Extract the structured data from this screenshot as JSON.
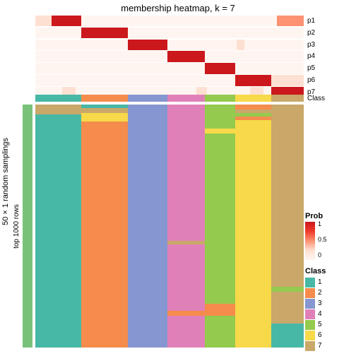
{
  "title": "membership heatmap, k = 7",
  "left_outer_label": "50 × 1 random samplings",
  "left_inner_label": "top 1000 rows",
  "left_block1_color": "#ffffff",
  "left_block2_color": "#79c27b",
  "p_row_labels": [
    "p1",
    "p2",
    "p3",
    "p4",
    "p5",
    "p6",
    "p7"
  ],
  "class_label": "Class",
  "prob_colors": {
    "c0": "#fff5f0",
    "c02": "#fee0d2",
    "c05": "#fc9272",
    "c08": "#ef3b2c",
    "c1": "#cb181d"
  },
  "class_colors": [
    "#47b8a5",
    "#f58c4c",
    "#8696d0",
    "#e080b8",
    "#94ca4e",
    "#f7d949",
    "#c9a86a"
  ],
  "class_labels": [
    "1",
    "2",
    "3",
    "4",
    "5",
    "6",
    "7"
  ],
  "legend_prob_title": "Prob",
  "legend_class_title": "Class",
  "prob_ticks": [
    "1",
    "0.5",
    "0"
  ],
  "col_widths": [
    0.172,
    0.172,
    0.147,
    0.14,
    0.114,
    0.135,
    0.12
  ],
  "p_rows": [
    {
      "blocks": [
        [
          0.0,
          0.06,
          "c02"
        ],
        [
          0.06,
          0.172,
          "c1"
        ],
        [
          0.172,
          0.9,
          "c0"
        ],
        [
          0.9,
          1.0,
          "c05"
        ]
      ]
    },
    {
      "blocks": [
        [
          0.0,
          0.172,
          "c0"
        ],
        [
          0.172,
          0.344,
          "c1"
        ],
        [
          0.344,
          1.0,
          "c0"
        ]
      ]
    },
    {
      "blocks": [
        [
          0.0,
          0.344,
          "c0"
        ],
        [
          0.344,
          0.491,
          "c1"
        ],
        [
          0.491,
          0.75,
          "c0"
        ],
        [
          0.75,
          0.78,
          "c02"
        ],
        [
          0.78,
          1.0,
          "c0"
        ]
      ]
    },
    {
      "blocks": [
        [
          0.0,
          0.491,
          "c0"
        ],
        [
          0.491,
          0.631,
          "c1"
        ],
        [
          0.631,
          1.0,
          "c0"
        ]
      ]
    },
    {
      "blocks": [
        [
          0.0,
          0.631,
          "c0"
        ],
        [
          0.631,
          0.745,
          "c1"
        ],
        [
          0.745,
          1.0,
          "c0"
        ]
      ]
    },
    {
      "blocks": [
        [
          0.0,
          0.745,
          "c0"
        ],
        [
          0.745,
          0.88,
          "c1"
        ],
        [
          0.88,
          1.0,
          "c02"
        ]
      ]
    },
    {
      "blocks": [
        [
          0.0,
          0.1,
          "c0"
        ],
        [
          0.1,
          0.15,
          "c02"
        ],
        [
          0.15,
          0.6,
          "c0"
        ],
        [
          0.6,
          0.64,
          "c02"
        ],
        [
          0.64,
          0.8,
          "c0"
        ],
        [
          0.8,
          0.85,
          "c02"
        ],
        [
          0.85,
          0.88,
          "c0"
        ],
        [
          0.88,
          1.0,
          "c1"
        ]
      ]
    }
  ],
  "main_cols": [
    {
      "cells": [
        [
          0.0,
          0.04,
          6
        ],
        [
          0.04,
          1.0,
          0
        ]
      ]
    },
    {
      "cells": [
        [
          0.0,
          0.015,
          0
        ],
        [
          0.015,
          0.035,
          6
        ],
        [
          0.035,
          0.07,
          5
        ],
        [
          0.07,
          1.0,
          1
        ]
      ]
    },
    {
      "cells": [
        [
          0.0,
          1.0,
          2
        ]
      ]
    },
    {
      "cells": [
        [
          0.0,
          0.56,
          3
        ],
        [
          0.56,
          0.575,
          6
        ],
        [
          0.575,
          0.85,
          3
        ],
        [
          0.85,
          0.87,
          1
        ],
        [
          0.87,
          1.0,
          3
        ]
      ]
    },
    {
      "cells": [
        [
          0.0,
          0.1,
          4
        ],
        [
          0.1,
          0.12,
          5
        ],
        [
          0.12,
          0.82,
          4
        ],
        [
          0.82,
          0.87,
          1
        ],
        [
          0.87,
          1.0,
          4
        ]
      ]
    },
    {
      "cells": [
        [
          0.0,
          0.02,
          1
        ],
        [
          0.02,
          0.035,
          6
        ],
        [
          0.035,
          0.05,
          4
        ],
        [
          0.05,
          0.065,
          1
        ],
        [
          0.065,
          1.0,
          5
        ]
      ]
    },
    {
      "cells": [
        [
          0.0,
          0.75,
          6
        ],
        [
          0.75,
          0.77,
          4
        ],
        [
          0.77,
          0.9,
          6
        ],
        [
          0.9,
          1.0,
          0
        ]
      ]
    }
  ]
}
